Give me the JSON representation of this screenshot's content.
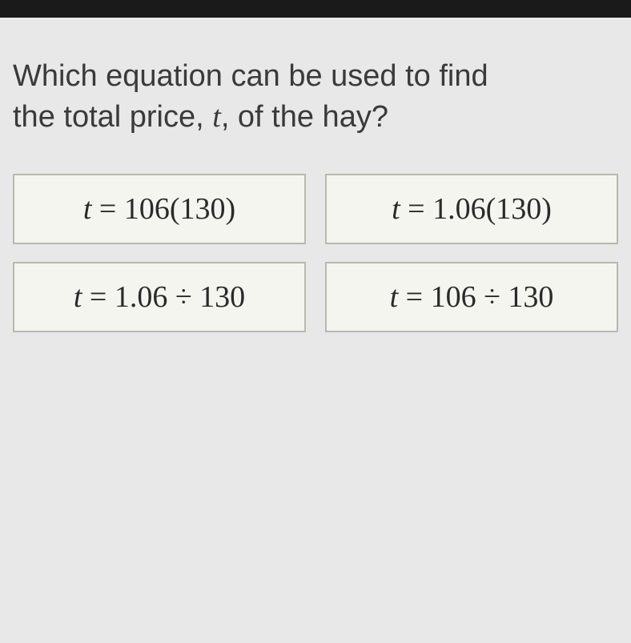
{
  "question": {
    "line1": "Which equation can be used to find",
    "line2_part1": "the total price, ",
    "variable": "t",
    "line2_part2": ", of the hay?"
  },
  "options": [
    {
      "variable": "t",
      "equals": " = ",
      "expression": "106(130)"
    },
    {
      "variable": "t",
      "equals": " = ",
      "expression": "1.06(130)"
    },
    {
      "variable": "t",
      "equals": " = ",
      "expression": "1.06 ÷ 130"
    },
    {
      "variable": "t",
      "equals": " = ",
      "expression": "106 ÷ 130"
    }
  ],
  "colors": {
    "background": "#e8e8e8",
    "top_bar": "#1a1a1a",
    "option_bg": "#f5f5f0",
    "option_border": "#b8b8b0",
    "text": "#3a3a3a"
  }
}
